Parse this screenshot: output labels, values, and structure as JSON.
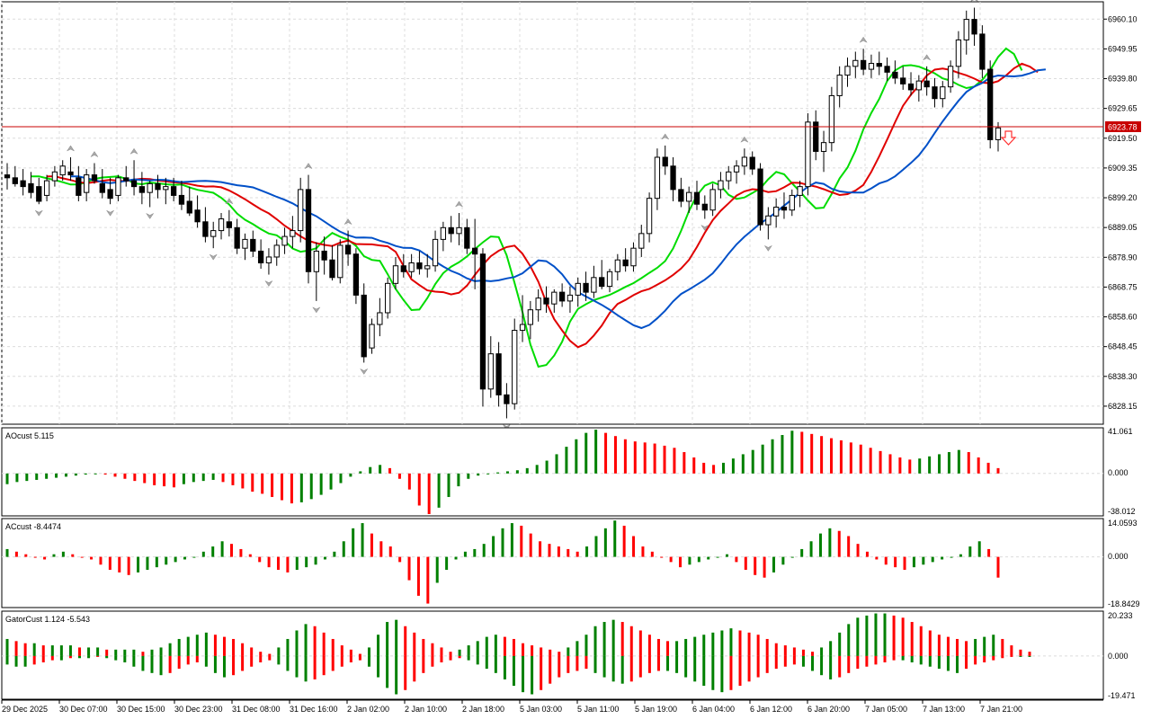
{
  "colors": {
    "bull": "#008000",
    "bear": "#ff0000",
    "ma_fast": "#00dc00",
    "ma_mid": "#e00000",
    "ma_slow": "#0050c8",
    "price_line": "#c80000",
    "fractal": "#a8a8a8",
    "grid": "#dcdcdc"
  },
  "price_axis": {
    "labels": [
      "6960.10",
      "6949.95",
      "6939.80",
      "6929.65",
      "6919.50",
      "6909.35",
      "6899.20",
      "6889.05",
      "6878.90",
      "6868.75",
      "6858.60",
      "6848.45",
      "6838.30",
      "6828.15"
    ],
    "current_price": "6923.78",
    "min": 6822,
    "max": 6966
  },
  "time_axis": {
    "labels": [
      "29 Dec 2025",
      "30 Dec 07:00",
      "30 Dec 15:00",
      "30 Dec 23:00",
      "31 Dec 08:00",
      "31 Dec 16:00",
      "2 Jan 02:00",
      "2 Jan 10:00",
      "2 Jan 18:00",
      "5 Jan 03:00",
      "5 Jan 11:00",
      "5 Jan 19:00",
      "6 Jan 04:00",
      "6 Jan 12:00",
      "6 Jan 20:00",
      "7 Jan 05:00",
      "7 Jan 13:00",
      "7 Jan 21:00"
    ]
  },
  "sub_panels": [
    {
      "id": "ao",
      "title": "AOcust 5.115",
      "top_label": "41.061",
      "mid_label": "0.000",
      "bottom_label": "-38.012"
    },
    {
      "id": "ac",
      "title": "ACcust -8.4474",
      "top_label": "14.0593",
      "mid_label": "0.000",
      "bottom_label": "-18.8429"
    },
    {
      "id": "gator",
      "title": "GatorCust 1.124 -5.543",
      "top_label": "20.233",
      "mid_label": "0.000",
      "bottom_label": "-19.471"
    }
  ],
  "chart_data": [
    {
      "type": "candlestick",
      "title": "",
      "ylim": [
        6822,
        6966
      ],
      "candles": [
        [
          6907,
          6911,
          6902,
          6906
        ],
        [
          6906,
          6910,
          6903,
          6904
        ],
        [
          6905,
          6909,
          6900,
          6903
        ],
        [
          6904,
          6908,
          6899,
          6901
        ],
        [
          6903,
          6906,
          6897,
          6898
        ],
        [
          6900,
          6907,
          6898,
          6905
        ],
        [
          6905,
          6910,
          6903,
          6908
        ],
        [
          6907,
          6912,
          6905,
          6910
        ],
        [
          6908,
          6913,
          6905,
          6907
        ],
        [
          6906,
          6910,
          6898,
          6900
        ],
        [
          6901,
          6909,
          6898,
          6907
        ],
        [
          6907,
          6911,
          6904,
          6905
        ],
        [
          6904,
          6909,
          6899,
          6901
        ],
        [
          6902,
          6906,
          6897,
          6899
        ],
        [
          6900,
          6907,
          6898,
          6906
        ],
        [
          6906,
          6910,
          6903,
          6905
        ],
        [
          6905,
          6912,
          6900,
          6903
        ],
        [
          6903,
          6908,
          6897,
          6901
        ],
        [
          6901,
          6905,
          6896,
          6904
        ],
        [
          6904,
          6907,
          6899,
          6902
        ],
        [
          6902,
          6906,
          6897,
          6903
        ],
        [
          6903,
          6906,
          6898,
          6900
        ],
        [
          6900,
          6905,
          6895,
          6897
        ],
        [
          6898,
          6903,
          6893,
          6894
        ],
        [
          6895,
          6900,
          6889,
          6891
        ],
        [
          6891,
          6896,
          6884,
          6886
        ],
        [
          6886,
          6891,
          6882,
          6888
        ],
        [
          6888,
          6894,
          6885,
          6892
        ],
        [
          6891,
          6895,
          6886,
          6889
        ],
        [
          6889,
          6892,
          6880,
          6882
        ],
        [
          6882,
          6887,
          6878,
          6885
        ],
        [
          6885,
          6888,
          6879,
          6881
        ],
        [
          6881,
          6885,
          6875,
          6877
        ],
        [
          6877,
          6882,
          6873,
          6879
        ],
        [
          6879,
          6885,
          6876,
          6883
        ],
        [
          6883,
          6889,
          6880,
          6886
        ],
        [
          6886,
          6893,
          6882,
          6888
        ],
        [
          6888,
          6906,
          6884,
          6902
        ],
        [
          6902,
          6907,
          6870,
          6874
        ],
        [
          6874,
          6884,
          6864,
          6881
        ],
        [
          6881,
          6886,
          6873,
          6878
        ],
        [
          6878,
          6883,
          6871,
          6872
        ],
        [
          6872,
          6885,
          6870,
          6883
        ],
        [
          6883,
          6888,
          6876,
          6880
        ],
        [
          6880,
          6882,
          6863,
          6866
        ],
        [
          6866,
          6870,
          6843,
          6845
        ],
        [
          6848,
          6858,
          6846,
          6856
        ],
        [
          6856,
          6865,
          6852,
          6860
        ],
        [
          6860,
          6872,
          6858,
          6870
        ],
        [
          6870,
          6879,
          6868,
          6876
        ],
        [
          6876,
          6880,
          6872,
          6874
        ],
        [
          6874,
          6880,
          6872,
          6877
        ],
        [
          6877,
          6881,
          6873,
          6875
        ],
        [
          6875,
          6880,
          6872,
          6876
        ],
        [
          6876,
          6888,
          6874,
          6885
        ],
        [
          6885,
          6891,
          6881,
          6889
        ],
        [
          6889,
          6893,
          6884,
          6887
        ],
        [
          6887,
          6894,
          6883,
          6889
        ],
        [
          6889,
          6892,
          6880,
          6882
        ],
        [
          6882,
          6892,
          6868,
          6880
        ],
        [
          6880,
          6882,
          6828,
          6834
        ],
        [
          6834,
          6852,
          6831,
          6846
        ],
        [
          6846,
          6850,
          6828,
          6832
        ],
        [
          6832,
          6836,
          6824,
          6829
        ],
        [
          6829,
          6858,
          6827,
          6854
        ],
        [
          6854,
          6866,
          6850,
          6856
        ],
        [
          6856,
          6864,
          6851,
          6861
        ],
        [
          6861,
          6868,
          6857,
          6865
        ],
        [
          6865,
          6869,
          6860,
          6863
        ],
        [
          6863,
          6868,
          6860,
          6867
        ],
        [
          6867,
          6870,
          6862,
          6864
        ],
        [
          6864,
          6869,
          6860,
          6866
        ],
        [
          6866,
          6872,
          6862,
          6870
        ],
        [
          6870,
          6874,
          6864,
          6867
        ],
        [
          6867,
          6876,
          6865,
          6872
        ],
        [
          6872,
          6878,
          6868,
          6869
        ],
        [
          6869,
          6875,
          6867,
          6874
        ],
        [
          6874,
          6880,
          6871,
          6878
        ],
        [
          6878,
          6882,
          6874,
          6876
        ],
        [
          6876,
          6884,
          6874,
          6882
        ],
        [
          6882,
          6890,
          6879,
          6887
        ],
        [
          6887,
          6901,
          6884,
          6899
        ],
        [
          6899,
          6916,
          6895,
          6913
        ],
        [
          6913,
          6917,
          6907,
          6910
        ],
        [
          6910,
          6913,
          6898,
          6902
        ],
        [
          6902,
          6906,
          6896,
          6898
        ],
        [
          6898,
          6903,
          6894,
          6901
        ],
        [
          6901,
          6905,
          6895,
          6897
        ],
        [
          6897,
          6900,
          6892,
          6895
        ],
        [
          6895,
          6904,
          6893,
          6902
        ],
        [
          6902,
          6908,
          6899,
          6905
        ],
        [
          6905,
          6910,
          6902,
          6908
        ],
        [
          6908,
          6912,
          6904,
          6910
        ],
        [
          6910,
          6916,
          6907,
          6913
        ],
        [
          6913,
          6915,
          6907,
          6909
        ],
        [
          6909,
          6911,
          6888,
          6890
        ],
        [
          6890,
          6896,
          6885,
          6893
        ],
        [
          6893,
          6899,
          6889,
          6896
        ],
        [
          6896,
          6901,
          6892,
          6895
        ],
        [
          6895,
          6902,
          6893,
          6900
        ],
        [
          6900,
          6905,
          6896,
          6903
        ],
        [
          6903,
          6928,
          6900,
          6925
        ],
        [
          6925,
          6929,
          6912,
          6915
        ],
        [
          6915,
          6922,
          6908,
          6918
        ],
        [
          6918,
          6937,
          6915,
          6934
        ],
        [
          6934,
          6944,
          6930,
          6941
        ],
        [
          6941,
          6947,
          6937,
          6944
        ],
        [
          6944,
          6949,
          6940,
          6946
        ],
        [
          6946,
          6950,
          6941,
          6943
        ],
        [
          6943,
          6948,
          6940,
          6945
        ],
        [
          6945,
          6949,
          6941,
          6944
        ],
        [
          6944,
          6947,
          6939,
          6942
        ],
        [
          6942,
          6946,
          6938,
          6940
        ],
        [
          6940,
          6944,
          6936,
          6938
        ],
        [
          6938,
          6942,
          6934,
          6936
        ],
        [
          6936,
          6941,
          6932,
          6939
        ],
        [
          6939,
          6944,
          6934,
          6937
        ],
        [
          6937,
          6940,
          6930,
          6933
        ],
        [
          6933,
          6939,
          6930,
          6937
        ],
        [
          6937,
          6946,
          6935,
          6944
        ],
        [
          6944,
          6956,
          6940,
          6953
        ],
        [
          6953,
          6963,
          6948,
          6960
        ],
        [
          6960,
          6964,
          6951,
          6955
        ],
        [
          6955,
          6958,
          6940,
          6943
        ],
        [
          6943,
          6946,
          6916,
          6919
        ],
        [
          6919,
          6925,
          6915,
          6923
        ]
      ]
    },
    {
      "type": "bar",
      "title": "AOcust 5.115",
      "ylim": [
        -38.012,
        41.061
      ],
      "values": [
        -10,
        -8,
        -7,
        -6,
        -5,
        -4,
        -3,
        -2,
        -1,
        0,
        -1,
        -3,
        -5,
        -7,
        -9,
        -11,
        -12,
        -13,
        -10,
        -8,
        -7,
        -6,
        -8,
        -11,
        -14,
        -17,
        -19,
        -22,
        -25,
        -28,
        -27,
        -24,
        -20,
        -15,
        -9,
        -3,
        2,
        6,
        8,
        5,
        -5,
        -15,
        -30,
        -38,
        -32,
        -22,
        -12,
        -5,
        -2,
        0,
        1,
        2,
        3,
        5,
        8,
        12,
        18,
        25,
        32,
        38,
        41,
        38,
        35,
        32,
        30,
        29,
        28,
        26,
        24,
        20,
        15,
        10,
        8,
        10,
        14,
        18,
        22,
        27,
        32,
        36,
        40,
        39,
        37,
        35,
        33,
        31,
        29,
        27,
        24,
        21,
        18,
        15,
        13,
        14,
        16,
        18,
        20,
        22,
        20,
        15,
        10,
        5
      ],
      "colors": "green when rising, red when falling"
    },
    {
      "type": "bar",
      "title": "ACcust -8.4474",
      "ylim": [
        -18.8429,
        14.0593
      ],
      "values": [
        3,
        2,
        1,
        0,
        -1,
        1,
        2,
        1,
        0,
        -1,
        -3,
        -5,
        -6,
        -7,
        -6,
        -5,
        -4,
        -3,
        -2,
        -1,
        0,
        2,
        4,
        6,
        5,
        3,
        1,
        -2,
        -4,
        -5,
        -6,
        -5,
        -4,
        -3,
        -1,
        2,
        6,
        11,
        13,
        9,
        6,
        4,
        -2,
        -9,
        -15,
        -18,
        -10,
        -5,
        -1,
        2,
        3,
        5,
        8,
        11,
        13,
        12,
        9,
        6,
        5,
        4,
        3,
        2,
        4,
        8,
        11,
        14,
        12,
        8,
        4,
        2,
        0,
        -2,
        -4,
        -3,
        -2,
        -1,
        0,
        1,
        -2,
        -5,
        -7,
        -8,
        -6,
        -3,
        0,
        3,
        6,
        9,
        11,
        10,
        8,
        5,
        2,
        -1,
        -3,
        -4,
        -5,
        -4,
        -3,
        -2,
        -1,
        0,
        1,
        4,
        6,
        3,
        -8
      ]
    },
    {
      "type": "bar",
      "title": "GatorCust 1.124 -5.543",
      "ylim": [
        -19.471,
        20.233
      ],
      "upper": [
        8,
        7,
        6,
        6,
        5,
        5,
        5,
        5,
        4,
        4,
        4,
        3,
        3,
        3,
        3,
        2,
        3,
        4,
        6,
        8,
        9,
        10,
        11,
        10,
        9,
        8,
        6,
        4,
        2,
        1,
        4,
        8,
        12,
        15,
        14,
        11,
        8,
        5,
        3,
        1,
        4,
        10,
        16,
        17,
        14,
        11,
        8,
        6,
        4,
        2,
        3,
        5,
        7,
        9,
        10,
        9,
        8,
        6,
        5,
        4,
        3,
        2,
        4,
        7,
        10,
        14,
        16,
        17,
        16,
        14,
        12,
        10,
        8,
        7,
        7,
        8,
        9,
        10,
        11,
        12,
        13,
        12,
        11,
        10,
        8,
        6,
        5,
        4,
        3,
        2,
        4,
        7,
        11,
        15,
        18,
        19,
        20,
        20,
        19,
        18,
        16,
        14,
        12,
        10,
        9,
        8,
        7,
        8,
        9,
        10,
        8,
        5,
        3,
        2
      ],
      "lower": [
        -4,
        -5,
        -5,
        -4,
        -3,
        -2,
        -2,
        -1,
        -1,
        -1,
        0,
        -1,
        -2,
        -3,
        -5,
        -7,
        -8,
        -9,
        -8,
        -6,
        -4,
        -3,
        -5,
        -8,
        -10,
        -9,
        -7,
        -5,
        -3,
        -2,
        -4,
        -7,
        -10,
        -12,
        -11,
        -9,
        -7,
        -5,
        -3,
        -2,
        -5,
        -10,
        -15,
        -18,
        -16,
        -12,
        -8,
        -5,
        -3,
        -2,
        -1,
        -2,
        -4,
        -6,
        -8,
        -11,
        -14,
        -17,
        -18,
        -16,
        -13,
        -10,
        -8,
        -7,
        -6,
        -8,
        -10,
        -12,
        -13,
        -12,
        -10,
        -8,
        -7,
        -7,
        -8,
        -10,
        -12,
        -14,
        -16,
        -17,
        -16,
        -14,
        -12,
        -10,
        -8,
        -6,
        -5,
        -4,
        -5,
        -7,
        -9,
        -11,
        -10,
        -8,
        -6,
        -5,
        -4,
        -3,
        -2,
        -2,
        -3,
        -4,
        -5,
        -6,
        -7,
        -8,
        -6,
        -4,
        -3,
        -2,
        -1,
        0,
        0,
        0
      ]
    }
  ]
}
